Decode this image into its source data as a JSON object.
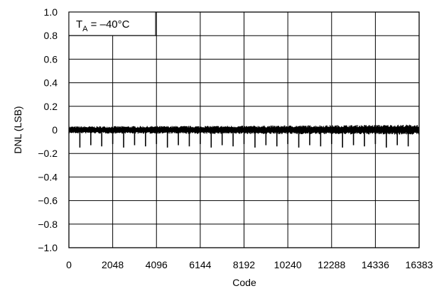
{
  "chart_data": {
    "type": "line",
    "title": "",
    "xlabel": "Code",
    "ylabel": "DNL (LSB)",
    "annotation": {
      "main": "T",
      "subscript": "A",
      "rest": " = –40°C"
    },
    "xlim": [
      0,
      16383
    ],
    "ylim": [
      -1.0,
      1.0
    ],
    "x_ticks": [
      0,
      2048,
      4096,
      6144,
      8192,
      10240,
      12288,
      14336,
      16383
    ],
    "x_tick_labels": [
      "0",
      "2048",
      "4096",
      "6144",
      "8192",
      "10240",
      "12288",
      "14336",
      "16383"
    ],
    "y_ticks": [
      1.0,
      0.8,
      0.6,
      0.4,
      0.2,
      0,
      -0.2,
      -0.4,
      -0.6,
      -0.8,
      -1.0
    ],
    "y_tick_labels": [
      "1.0",
      "0.8",
      "0.6",
      "0.4",
      "0.2",
      "0",
      "−0.2",
      "−0.4",
      "−0.6",
      "−0.8",
      "−1.0"
    ],
    "grid": true,
    "series": [
      {
        "band": {
          "x_range": [
            0,
            16383
          ],
          "upper": [
            [
              0,
              0.03
            ],
            [
              8192,
              0.035
            ],
            [
              16383,
              0.045
            ]
          ],
          "lower": [
            [
              0,
              -0.03
            ],
            [
              8192,
              -0.035
            ],
            [
              16383,
              -0.04
            ]
          ]
        },
        "spike_period": 512,
        "spike_start": 512,
        "spike_values": [
          -0.15,
          -0.13,
          -0.14,
          -0.12
        ]
      }
    ],
    "color": "#000000"
  }
}
